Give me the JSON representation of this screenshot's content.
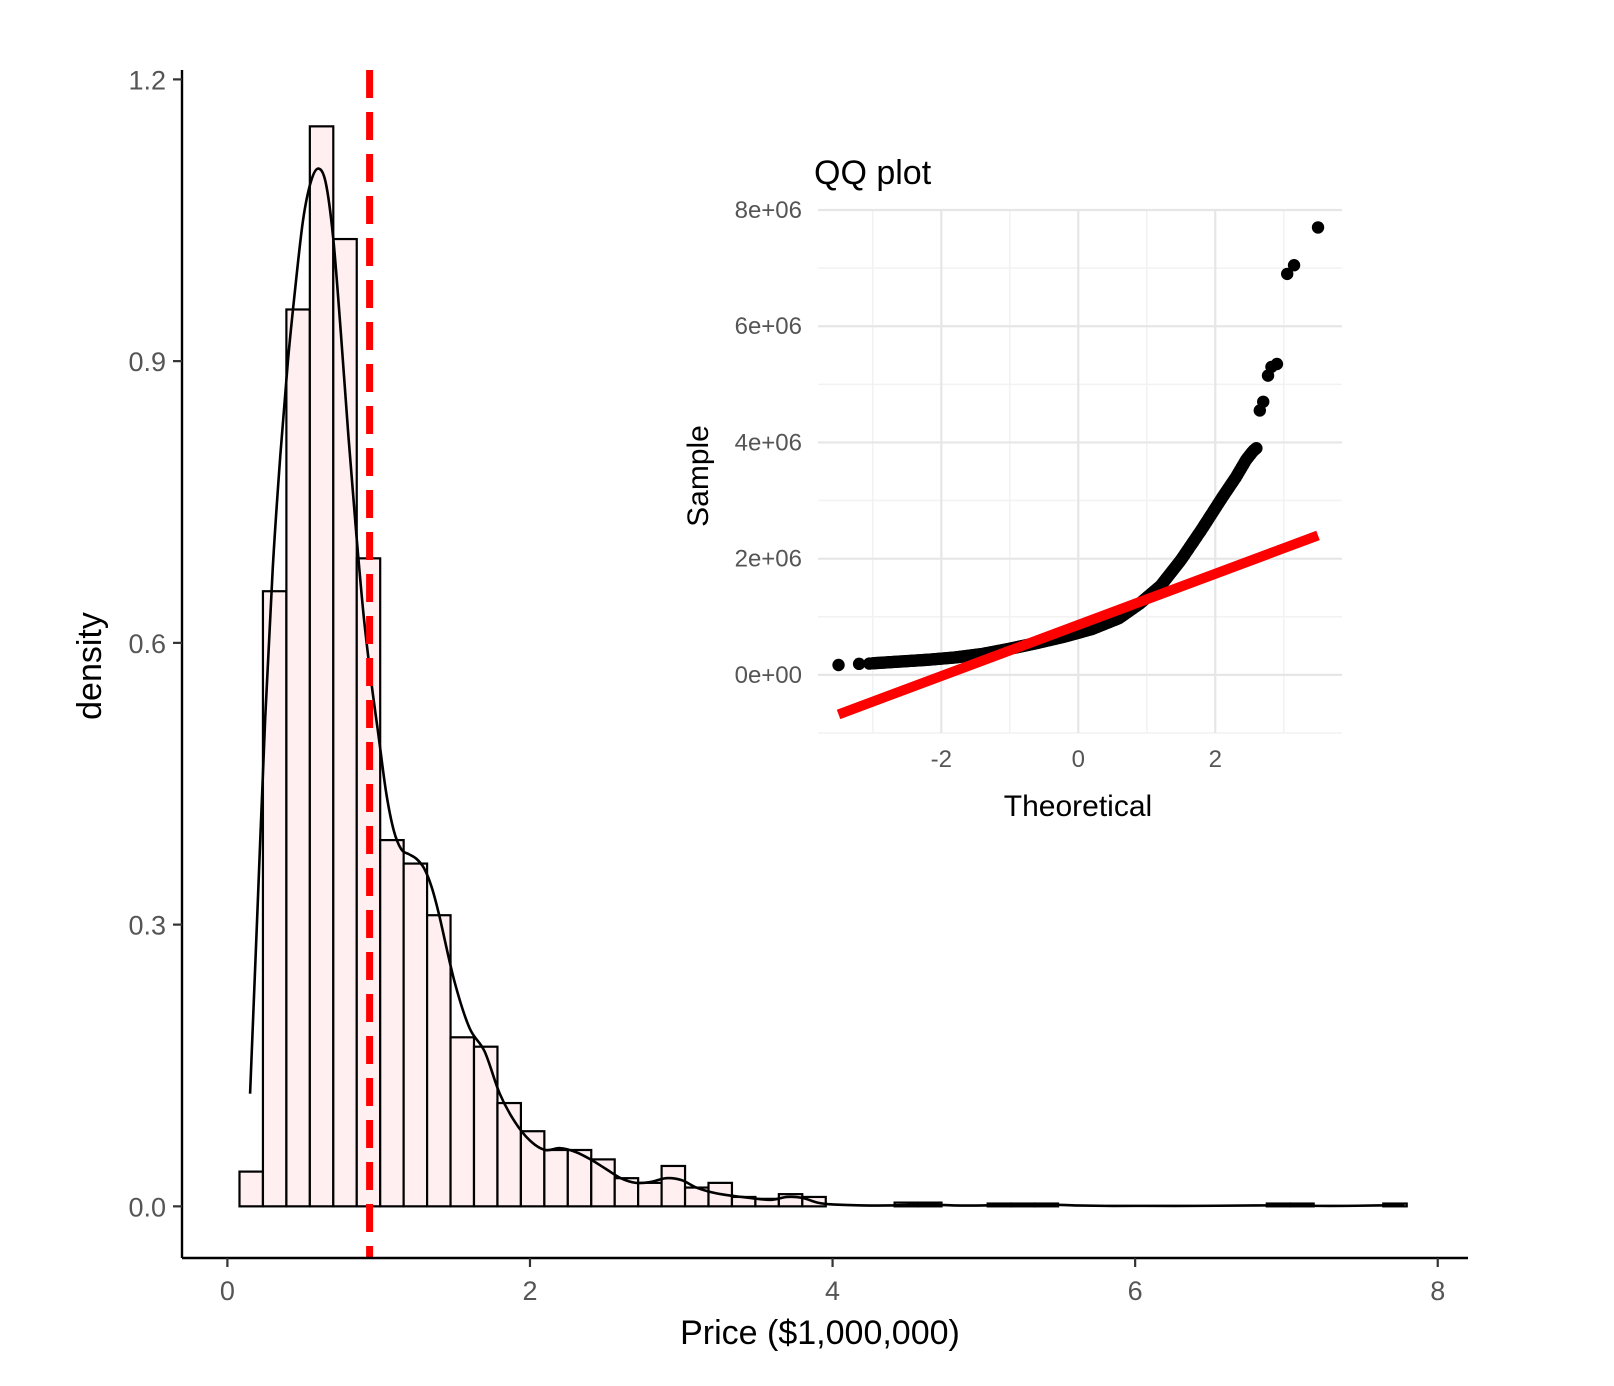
{
  "chart_data": [
    {
      "type": "bar",
      "subtype": "histogram-with-density",
      "title": "",
      "xlabel": "Price ($1,000,000)",
      "ylabel": "density",
      "xlim": [
        -0.3,
        8.2
      ],
      "ylim": [
        -0.055,
        1.21
      ],
      "xticks": [
        0,
        2,
        4,
        6,
        8
      ],
      "xtick_labels": [
        "0",
        "2",
        "4",
        "6",
        "8"
      ],
      "yticks": [
        0.0,
        0.3,
        0.6,
        0.9,
        1.2
      ],
      "ytick_labels": [
        "0.0",
        "0.3",
        "0.6",
        "0.9",
        "1.2"
      ],
      "grid": false,
      "bin_width": 0.155,
      "bins": [
        {
          "x0": 0.08,
          "value": 0.037
        },
        {
          "x0": 0.235,
          "value": 0.655
        },
        {
          "x0": 0.39,
          "value": 0.955
        },
        {
          "x0": 0.545,
          "value": 1.15
        },
        {
          "x0": 0.7,
          "value": 1.03
        },
        {
          "x0": 0.855,
          "value": 0.69
        },
        {
          "x0": 1.01,
          "value": 0.39
        },
        {
          "x0": 1.165,
          "value": 0.365
        },
        {
          "x0": 1.32,
          "value": 0.31
        },
        {
          "x0": 1.475,
          "value": 0.18
        },
        {
          "x0": 1.63,
          "value": 0.17
        },
        {
          "x0": 1.785,
          "value": 0.11
        },
        {
          "x0": 1.94,
          "value": 0.08
        },
        {
          "x0": 2.095,
          "value": 0.06
        },
        {
          "x0": 2.25,
          "value": 0.06
        },
        {
          "x0": 2.405,
          "value": 0.05
        },
        {
          "x0": 2.56,
          "value": 0.03
        },
        {
          "x0": 2.715,
          "value": 0.025
        },
        {
          "x0": 2.87,
          "value": 0.043
        },
        {
          "x0": 3.025,
          "value": 0.02
        },
        {
          "x0": 3.18,
          "value": 0.025
        },
        {
          "x0": 3.335,
          "value": 0.01
        },
        {
          "x0": 3.49,
          "value": 0.008
        },
        {
          "x0": 3.645,
          "value": 0.013
        },
        {
          "x0": 3.8,
          "value": 0.01
        },
        {
          "x0": 4.41,
          "value": 0.004
        },
        {
          "x0": 4.565,
          "value": 0.004
        },
        {
          "x0": 5.025,
          "value": 0.003
        },
        {
          "x0": 5.18,
          "value": 0.003
        },
        {
          "x0": 5.335,
          "value": 0.003
        },
        {
          "x0": 6.87,
          "value": 0.003
        },
        {
          "x0": 7.025,
          "value": 0.003
        },
        {
          "x0": 7.64,
          "value": 0.003
        }
      ],
      "density_curve": {
        "x": [
          0.15,
          0.2,
          0.25,
          0.3,
          0.35,
          0.4,
          0.45,
          0.5,
          0.55,
          0.6,
          0.65,
          0.7,
          0.75,
          0.8,
          0.85,
          0.9,
          0.95,
          1.0,
          1.05,
          1.1,
          1.15,
          1.2,
          1.25,
          1.3,
          1.35,
          1.4,
          1.5,
          1.6,
          1.7,
          1.8,
          1.9,
          2.0,
          2.1,
          2.2,
          2.3,
          2.4,
          2.5,
          2.6,
          2.7,
          2.8,
          2.9,
          3.0,
          3.1,
          3.2,
          3.3,
          3.4,
          3.5,
          3.6,
          3.7,
          3.8,
          3.9,
          4.0,
          4.2,
          4.4,
          4.6,
          4.8,
          5.0,
          5.2,
          5.4,
          5.6,
          5.8,
          6.0,
          6.4,
          6.8,
          7.0,
          7.2,
          7.4,
          7.6,
          7.78
        ],
        "y": [
          0.12,
          0.32,
          0.52,
          0.68,
          0.8,
          0.9,
          0.98,
          1.05,
          1.09,
          1.105,
          1.09,
          1.03,
          0.93,
          0.82,
          0.72,
          0.63,
          0.56,
          0.5,
          0.44,
          0.4,
          0.38,
          0.375,
          0.37,
          0.36,
          0.34,
          0.31,
          0.24,
          0.19,
          0.165,
          0.12,
          0.09,
          0.07,
          0.06,
          0.062,
          0.058,
          0.05,
          0.04,
          0.03,
          0.025,
          0.026,
          0.03,
          0.028,
          0.02,
          0.015,
          0.012,
          0.01,
          0.008,
          0.007,
          0.01,
          0.009,
          0.004,
          0.002,
          0.001,
          0.001,
          0.002,
          0.001,
          0.001,
          0.002,
          0.002,
          0.001,
          0.0005,
          0.0005,
          0.0005,
          0.001,
          0.001,
          0.0005,
          0.0005,
          0.001,
          0.001
        ]
      },
      "reference_line": {
        "x": 0.94,
        "color": "#FF0000",
        "style": "dashed"
      },
      "colors": {
        "bar_fill": "#FFEFF0",
        "bar_stroke": "#000000",
        "curve": "#000000"
      }
    },
    {
      "type": "scatter",
      "subtype": "qq-plot",
      "title": "QQ plot",
      "xlabel": "Theoretical",
      "ylabel": "Sample",
      "xlim": [
        -3.8,
        3.85
      ],
      "ylim": [
        -1000000,
        8000000
      ],
      "xticks": [
        -2,
        0,
        2
      ],
      "xtick_labels": [
        "-2",
        "0",
        "2"
      ],
      "yticks": [
        0,
        2000000,
        4000000,
        6000000,
        8000000
      ],
      "ytick_labels": [
        "0e+00",
        "2e+06",
        "4e+06",
        "6e+06",
        "8e+06"
      ],
      "grid": true,
      "reference_line": {
        "x": [
          -3.5,
          3.5
        ],
        "y": [
          -680000,
          2400000
        ],
        "color": "#FF0000"
      },
      "outlier_points": [
        {
          "x": -3.5,
          "y": 170000
        },
        {
          "x": -3.2,
          "y": 190000
        },
        {
          "x": -3.05,
          "y": 195000
        },
        {
          "x": 2.65,
          "y": 4550000
        },
        {
          "x": 2.7,
          "y": 4700000
        },
        {
          "x": 2.77,
          "y": 5150000
        },
        {
          "x": 2.82,
          "y": 5300000
        },
        {
          "x": 2.9,
          "y": 5350000
        },
        {
          "x": 3.05,
          "y": 6900000
        },
        {
          "x": 3.15,
          "y": 7050000
        },
        {
          "x": 3.5,
          "y": 7700000
        }
      ],
      "curve_anchors": {
        "x": [
          -3.0,
          -2.6,
          -2.2,
          -1.8,
          -1.4,
          -1.0,
          -0.6,
          -0.2,
          0.2,
          0.6,
          0.9,
          1.2,
          1.5,
          1.8,
          2.1,
          2.3,
          2.45,
          2.55,
          2.6
        ],
        "y": [
          200000,
          230000,
          260000,
          300000,
          360000,
          450000,
          550000,
          660000,
          790000,
          980000,
          1230000,
          1530000,
          1980000,
          2500000,
          3050000,
          3400000,
          3700000,
          3850000,
          3900000
        ]
      },
      "colors": {
        "points": "#000000",
        "line": "#FF0000"
      }
    }
  ]
}
